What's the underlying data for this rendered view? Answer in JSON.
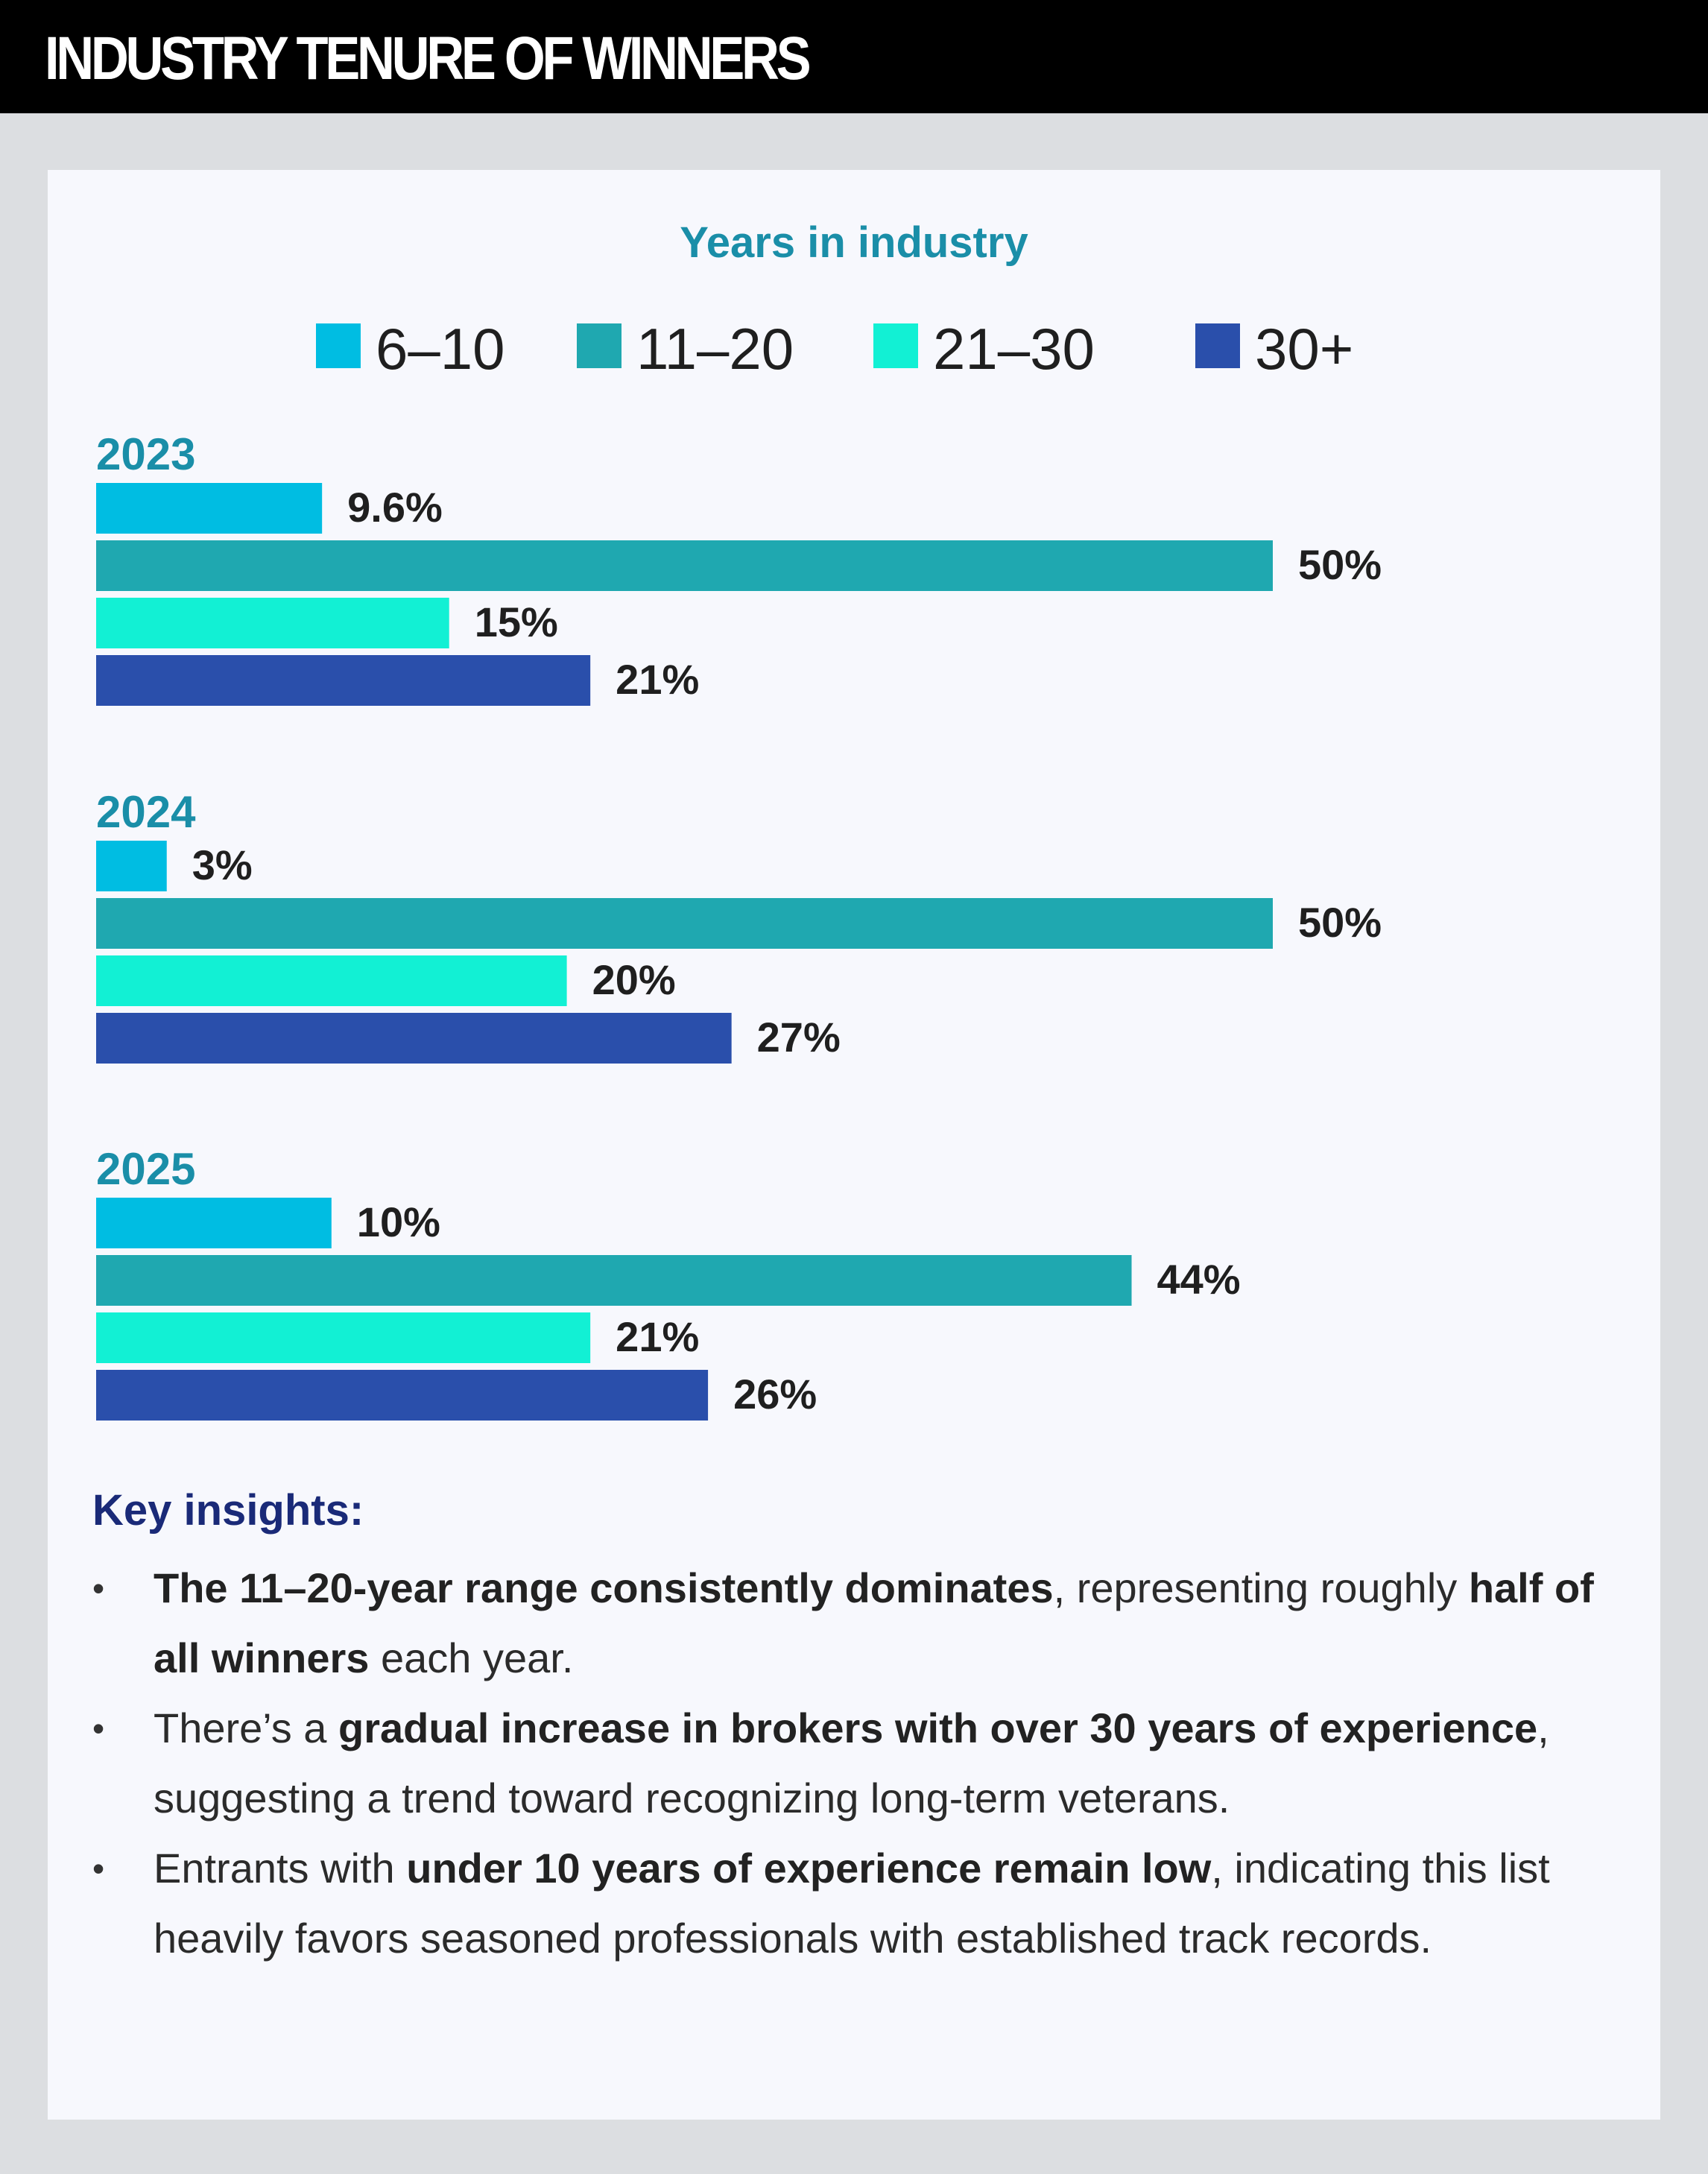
{
  "header": {
    "title": "INDUSTRY TENURE OF WINNERS"
  },
  "colors": {
    "6_10": "#00bde2",
    "11_20": "#1fa8b0",
    "21_30": "#12f0d4",
    "30_plus": "#2a4fab",
    "year_label": "#1a8ea8",
    "value_label": "#1f1f1f",
    "insights_title": "#1a2a78"
  },
  "chart_data": {
    "type": "bar",
    "orientation": "horizontal",
    "title": "Years in industry",
    "legend_position": "top",
    "grid": false,
    "categories": [
      "2023",
      "2024",
      "2025"
    ],
    "series": [
      {
        "name": "6–10",
        "values": [
          9.6,
          3,
          10
        ],
        "labels": [
          "9.6%",
          "3%",
          "10%"
        ]
      },
      {
        "name": "11–20",
        "values": [
          50,
          50,
          44
        ],
        "labels": [
          "50%",
          "50%",
          "44%"
        ]
      },
      {
        "name": "21–30",
        "values": [
          15,
          20,
          21
        ],
        "labels": [
          "15%",
          "20%",
          "21%"
        ]
      },
      {
        "name": "30+",
        "values": [
          21,
          27,
          26
        ],
        "labels": [
          "21%",
          "27%",
          "26%"
        ]
      }
    ],
    "xlim": [
      0,
      50
    ]
  },
  "insights": {
    "title": "Key insights:",
    "bullet_symbol": "•",
    "items": [
      {
        "b1": "The 11–20-year range consistently dominates",
        "t1": ", representing roughly ",
        "b2": "half of all winners",
        "t2": " each year."
      },
      {
        "t0": "There’s a ",
        "b1": "gradual increase in brokers with over 30 years of experience",
        "t1": ", suggesting a trend toward recognizing long-term veterans."
      },
      {
        "t0": "Entrants with ",
        "b1": "under 10 years of experience remain low",
        "t1": ", indicating this list heavily favors seasoned professionals with established track records."
      }
    ]
  }
}
